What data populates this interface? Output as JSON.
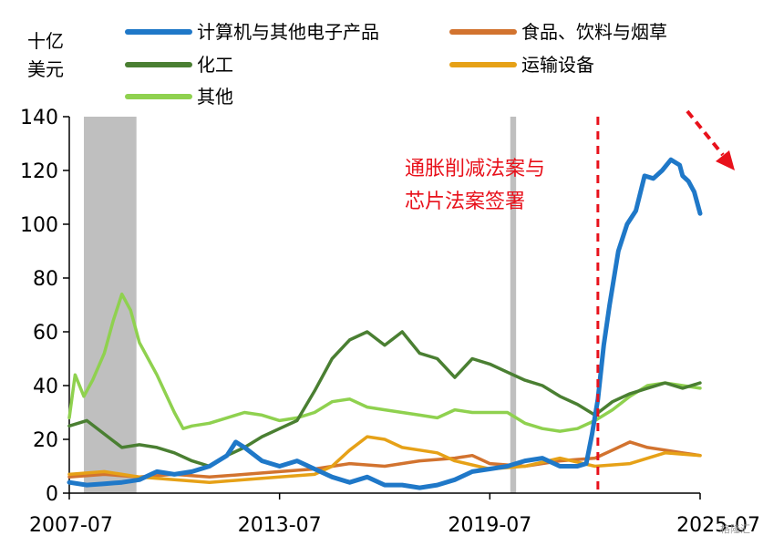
{
  "chart_data": {
    "type": "line",
    "unit_label_line1": "十亿",
    "unit_label_line2": "美元",
    "xlim": [
      "2007-07",
      "2025-07"
    ],
    "ylim": [
      0,
      140
    ],
    "y_ticks": [
      0,
      20,
      40,
      60,
      80,
      100,
      120,
      140
    ],
    "x_ticks": [
      "2007-07",
      "2013-07",
      "2019-07",
      "2025-07"
    ],
    "grid": false,
    "legend_position": "top",
    "recession_shading": [
      {
        "start": "2007-12",
        "end": "2009-06"
      },
      {
        "start": "2020-02",
        "end": "2020-04"
      }
    ],
    "event_line": {
      "date": "2022-08",
      "label_line1": "通胀削减法案与",
      "label_line2": "芯片法案签署",
      "color": "#e8111b"
    },
    "trend_arrow": {
      "direction": "down",
      "color": "#e8111b"
    },
    "series": [
      {
        "name": "计算机与其他电子产品",
        "color": "#1f78c8",
        "points": [
          [
            "2007-07",
            4
          ],
          [
            "2008-01",
            3
          ],
          [
            "2008-07",
            3.5
          ],
          [
            "2009-01",
            4
          ],
          [
            "2009-07",
            5
          ],
          [
            "2010-01",
            8
          ],
          [
            "2010-07",
            7
          ],
          [
            "2011-01",
            8
          ],
          [
            "2011-07",
            10
          ],
          [
            "2012-01",
            14
          ],
          [
            "2012-04",
            19
          ],
          [
            "2012-07",
            17
          ],
          [
            "2013-01",
            12
          ],
          [
            "2013-07",
            10
          ],
          [
            "2014-01",
            12
          ],
          [
            "2014-07",
            9
          ],
          [
            "2015-01",
            6
          ],
          [
            "2015-07",
            4
          ],
          [
            "2016-01",
            6
          ],
          [
            "2016-07",
            3
          ],
          [
            "2017-01",
            3
          ],
          [
            "2017-07",
            2
          ],
          [
            "2018-01",
            3
          ],
          [
            "2018-07",
            5
          ],
          [
            "2019-01",
            8
          ],
          [
            "2019-07",
            9
          ],
          [
            "2020-01",
            10
          ],
          [
            "2020-07",
            12
          ],
          [
            "2021-01",
            13
          ],
          [
            "2021-07",
            10
          ],
          [
            "2022-01",
            10
          ],
          [
            "2022-04",
            11
          ],
          [
            "2022-06",
            22
          ],
          [
            "2022-08",
            35
          ],
          [
            "2022-10",
            55
          ],
          [
            "2022-12",
            70
          ],
          [
            "2023-03",
            90
          ],
          [
            "2023-06",
            100
          ],
          [
            "2023-09",
            105
          ],
          [
            "2023-12",
            118
          ],
          [
            "2024-03",
            117
          ],
          [
            "2024-06",
            120
          ],
          [
            "2024-09",
            124
          ],
          [
            "2024-12",
            122
          ],
          [
            "2025-01",
            118
          ],
          [
            "2025-03",
            116
          ],
          [
            "2025-05",
            112
          ],
          [
            "2025-07",
            104
          ]
        ]
      },
      {
        "name": "食品、饮料与烟草",
        "color": "#d2732f",
        "points": [
          [
            "2007-07",
            6
          ],
          [
            "2008-07",
            7
          ],
          [
            "2009-07",
            6
          ],
          [
            "2010-07",
            7
          ],
          [
            "2011-07",
            6
          ],
          [
            "2012-07",
            7
          ],
          [
            "2013-07",
            8
          ],
          [
            "2014-07",
            9
          ],
          [
            "2015-07",
            11
          ],
          [
            "2016-07",
            10
          ],
          [
            "2017-07",
            12
          ],
          [
            "2018-07",
            13
          ],
          [
            "2019-01",
            14
          ],
          [
            "2019-07",
            11
          ],
          [
            "2020-07",
            10
          ],
          [
            "2021-07",
            12
          ],
          [
            "2022-07",
            13
          ],
          [
            "2023-01",
            16
          ],
          [
            "2023-07",
            19
          ],
          [
            "2024-01",
            17
          ],
          [
            "2024-07",
            16
          ],
          [
            "2025-01",
            15
          ],
          [
            "2025-07",
            14
          ]
        ]
      },
      {
        "name": "化工",
        "color": "#4a7f32",
        "points": [
          [
            "2007-07",
            25
          ],
          [
            "2008-01",
            27
          ],
          [
            "2008-07",
            22
          ],
          [
            "2009-01",
            17
          ],
          [
            "2009-07",
            18
          ],
          [
            "2010-01",
            17
          ],
          [
            "2010-07",
            15
          ],
          [
            "2011-01",
            12
          ],
          [
            "2011-07",
            10
          ],
          [
            "2012-01",
            14
          ],
          [
            "2012-07",
            17
          ],
          [
            "2013-01",
            21
          ],
          [
            "2013-07",
            24
          ],
          [
            "2014-01",
            27
          ],
          [
            "2014-07",
            38
          ],
          [
            "2015-01",
            50
          ],
          [
            "2015-07",
            57
          ],
          [
            "2016-01",
            60
          ],
          [
            "2016-07",
            55
          ],
          [
            "2017-01",
            60
          ],
          [
            "2017-07",
            52
          ],
          [
            "2018-01",
            50
          ],
          [
            "2018-07",
            43
          ],
          [
            "2019-01",
            50
          ],
          [
            "2019-07",
            48
          ],
          [
            "2020-01",
            45
          ],
          [
            "2020-07",
            42
          ],
          [
            "2021-01",
            40
          ],
          [
            "2021-07",
            36
          ],
          [
            "2022-01",
            33
          ],
          [
            "2022-07",
            29
          ],
          [
            "2023-01",
            34
          ],
          [
            "2023-07",
            37
          ],
          [
            "2024-01",
            39
          ],
          [
            "2024-07",
            41
          ],
          [
            "2025-01",
            39
          ],
          [
            "2025-07",
            41
          ]
        ]
      },
      {
        "name": "运输设备",
        "color": "#e6a117",
        "points": [
          [
            "2007-07",
            7
          ],
          [
            "2008-07",
            8
          ],
          [
            "2009-07",
            6
          ],
          [
            "2010-07",
            5
          ],
          [
            "2011-07",
            4
          ],
          [
            "2012-07",
            5
          ],
          [
            "2013-07",
            6
          ],
          [
            "2014-07",
            7
          ],
          [
            "2015-01",
            10
          ],
          [
            "2015-07",
            16
          ],
          [
            "2016-01",
            21
          ],
          [
            "2016-07",
            20
          ],
          [
            "2017-01",
            17
          ],
          [
            "2017-07",
            16
          ],
          [
            "2018-01",
            15
          ],
          [
            "2018-07",
            12
          ],
          [
            "2019-07",
            9
          ],
          [
            "2020-07",
            10
          ],
          [
            "2021-07",
            13
          ],
          [
            "2022-07",
            10
          ],
          [
            "2023-07",
            11
          ],
          [
            "2024-07",
            15
          ],
          [
            "2025-07",
            14
          ]
        ]
      },
      {
        "name": "其他",
        "color": "#8fd14f",
        "points": [
          [
            "2007-07",
            28
          ],
          [
            "2007-09",
            44
          ],
          [
            "2007-12",
            36
          ],
          [
            "2008-03",
            42
          ],
          [
            "2008-07",
            52
          ],
          [
            "2008-10",
            64
          ],
          [
            "2009-01",
            74
          ],
          [
            "2009-04",
            68
          ],
          [
            "2009-07",
            56
          ],
          [
            "2009-10",
            50
          ],
          [
            "2010-01",
            44
          ],
          [
            "2010-04",
            37
          ],
          [
            "2010-07",
            30
          ],
          [
            "2010-10",
            24
          ],
          [
            "2011-01",
            25
          ],
          [
            "2011-07",
            26
          ],
          [
            "2012-01",
            28
          ],
          [
            "2012-07",
            30
          ],
          [
            "2013-01",
            29
          ],
          [
            "2013-07",
            27
          ],
          [
            "2014-01",
            28
          ],
          [
            "2014-07",
            30
          ],
          [
            "2015-01",
            34
          ],
          [
            "2015-07",
            35
          ],
          [
            "2016-01",
            32
          ],
          [
            "2016-07",
            31
          ],
          [
            "2017-01",
            30
          ],
          [
            "2017-07",
            29
          ],
          [
            "2018-01",
            28
          ],
          [
            "2018-07",
            31
          ],
          [
            "2019-01",
            30
          ],
          [
            "2019-07",
            30
          ],
          [
            "2020-01",
            30
          ],
          [
            "2020-07",
            26
          ],
          [
            "2021-01",
            24
          ],
          [
            "2021-07",
            23
          ],
          [
            "2022-01",
            24
          ],
          [
            "2022-07",
            27
          ],
          [
            "2023-01",
            31
          ],
          [
            "2023-07",
            36
          ],
          [
            "2024-01",
            40
          ],
          [
            "2024-07",
            41
          ],
          [
            "2025-01",
            40
          ],
          [
            "2025-07",
            39
          ]
        ]
      }
    ]
  },
  "watermark": "格隆汇"
}
